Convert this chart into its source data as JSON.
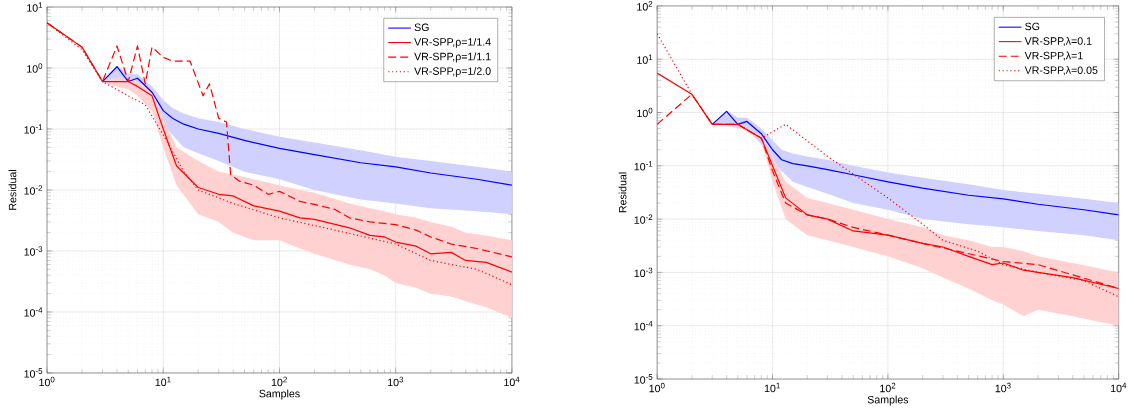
{
  "chart_data": [
    {
      "type": "line",
      "xlabel": "Samples",
      "ylabel": "Residual",
      "log": "xy",
      "grid": true,
      "legend": "top right",
      "xlim": [
        1,
        10000
      ],
      "ylim": [
        1e-05,
        10
      ],
      "xticks": [
        {
          "value": 1,
          "label": "10$^{0}$"
        },
        {
          "value": 10,
          "label": "10$^{1}$"
        },
        {
          "value": 100,
          "label": "10$^{2}$"
        },
        {
          "value": 1000,
          "label": "10$^{3}$"
        },
        {
          "value": 10000,
          "label": "10$^{4}$"
        }
      ],
      "yticks": [
        {
          "value": 1e-05,
          "label": "10$^{-5}$"
        },
        {
          "value": 0.0001,
          "label": "10$^{-4}$"
        },
        {
          "value": 0.001,
          "label": "10$^{-3}$"
        },
        {
          "value": 0.01,
          "label": "10$^{-2}$"
        },
        {
          "value": 0.1,
          "label": "10$^{-1}$"
        },
        {
          "value": 1,
          "label": "10$^{0}$"
        },
        {
          "value": 10,
          "label": "10$^{1}$"
        }
      ],
      "series": [
        {
          "name": "SG",
          "color": "#0000ff",
          "line_style": "solid",
          "x": [
            3,
            4,
            5,
            6,
            8,
            10,
            12,
            15,
            20,
            30,
            50,
            100,
            200,
            500,
            1000,
            2000,
            5000,
            10000
          ],
          "values": [
            0.6,
            1.05,
            0.6,
            0.68,
            0.4,
            0.2,
            0.15,
            0.12,
            0.1,
            0.085,
            0.065,
            0.048,
            0.038,
            0.028,
            0.024,
            0.019,
            0.015,
            0.012
          ],
          "lower": [
            0.6,
            0.6,
            0.5,
            0.5,
            0.25,
            0.12,
            0.08,
            0.05,
            0.04,
            0.03,
            0.02,
            0.015,
            0.01,
            0.007,
            0.006,
            0.005,
            0.0045,
            0.004
          ],
          "upper": [
            0.6,
            1.1,
            0.8,
            0.8,
            0.5,
            0.3,
            0.22,
            0.18,
            0.15,
            0.13,
            0.1,
            0.075,
            0.06,
            0.045,
            0.035,
            0.03,
            0.024,
            0.02
          ]
        },
        {
          "name": "VR-SPP,ρ=1/1.4",
          "color": "#ff0000",
          "line_style": "solid",
          "x": [
            1,
            2,
            3,
            4,
            5,
            6,
            8,
            10,
            13,
            20,
            30,
            40,
            60,
            100,
            150,
            200,
            400,
            600,
            800,
            1000,
            1500,
            2000,
            3000,
            4000,
            6000,
            10000
          ],
          "values": [
            5.5,
            2.2,
            0.6,
            0.6,
            0.6,
            0.5,
            0.35,
            0.1,
            0.025,
            0.011,
            0.0085,
            0.008,
            0.0055,
            0.0045,
            0.0035,
            0.0033,
            0.0024,
            0.0018,
            0.0017,
            0.0014,
            0.0012,
            0.0009,
            0.00095,
            0.0007,
            0.00065,
            0.00045
          ],
          "lower": [
            5.5,
            2.2,
            0.6,
            0.5,
            0.45,
            0.35,
            0.2,
            0.05,
            0.012,
            0.004,
            0.003,
            0.002,
            0.0015,
            0.0015,
            0.0011,
            0.0009,
            0.0006,
            0.0005,
            0.0004,
            0.0003,
            0.00025,
            0.0002,
            0.00018,
            0.00015,
            0.00012,
            8e-05
          ],
          "upper": [
            5.5,
            2.2,
            0.6,
            0.7,
            0.7,
            0.6,
            0.45,
            0.15,
            0.05,
            0.03,
            0.02,
            0.018,
            0.015,
            0.012,
            0.01,
            0.009,
            0.006,
            0.005,
            0.0045,
            0.004,
            0.0035,
            0.003,
            0.0025,
            0.002,
            0.0018,
            0.0015
          ]
        },
        {
          "name": "VR-SPP,ρ=1/1.1",
          "color": "#ff0000",
          "line_style": "dashed",
          "x": [
            1,
            2,
            3,
            4,
            5,
            6,
            7,
            8,
            10,
            12,
            17,
            22,
            25,
            30,
            35,
            38,
            45,
            60,
            80,
            100,
            150,
            200,
            300,
            400,
            600,
            1000,
            1500,
            2000,
            3000,
            5000,
            10000
          ],
          "values": [
            5.5,
            2.2,
            0.6,
            2.3,
            0.6,
            2.3,
            0.55,
            2.2,
            1.5,
            1.3,
            1.3,
            0.35,
            0.55,
            0.15,
            0.13,
            0.018,
            0.014,
            0.012,
            0.0085,
            0.0095,
            0.0065,
            0.0058,
            0.0048,
            0.0035,
            0.003,
            0.0027,
            0.0022,
            0.0017,
            0.0013,
            0.0011,
            0.0008
          ]
        },
        {
          "name": "VR-SPP,ρ=1/2.0",
          "color": "#ff0000",
          "line_style": "dotted",
          "x": [
            1,
            2,
            3,
            5,
            7,
            10,
            15,
            20,
            40,
            100,
            300,
            1000,
            2000,
            5000,
            10000
          ],
          "values": [
            5.5,
            2.0,
            0.6,
            0.35,
            0.25,
            0.08,
            0.02,
            0.01,
            0.006,
            0.0035,
            0.0022,
            0.0013,
            0.0007,
            0.0005,
            0.00028
          ]
        }
      ]
    },
    {
      "type": "line",
      "xlabel": "Samples",
      "ylabel": "Residual",
      "log": "xy",
      "grid": true,
      "legend": "top right",
      "xlim": [
        1,
        10000
      ],
      "ylim": [
        1e-05,
        100
      ],
      "xticks": [
        {
          "value": 1,
          "label": "10$^{0}$"
        },
        {
          "value": 10,
          "label": "10$^{1}$"
        },
        {
          "value": 100,
          "label": "10$^{2}$"
        },
        {
          "value": 1000,
          "label": "10$^{3}$"
        },
        {
          "value": 10000,
          "label": "10$^{4}$"
        }
      ],
      "yticks": [
        {
          "value": 1e-05,
          "label": "10$^{-5}$"
        },
        {
          "value": 0.0001,
          "label": "10$^{-4}$"
        },
        {
          "value": 0.001,
          "label": "10$^{-3}$"
        },
        {
          "value": 0.01,
          "label": "10$^{-2}$"
        },
        {
          "value": 0.1,
          "label": "10$^{-1}$"
        },
        {
          "value": 1,
          "label": "10$^{0}$"
        },
        {
          "value": 10,
          "label": "10$^{1}$"
        },
        {
          "value": 100,
          "label": "10$^{2}$"
        }
      ],
      "series": [
        {
          "name": "SG",
          "color": "#0000ff",
          "line_style": "solid",
          "x": [
            3,
            4,
            5,
            6,
            8,
            10,
            12,
            15,
            20,
            30,
            50,
            100,
            200,
            500,
            1000,
            2000,
            5000,
            10000
          ],
          "values": [
            0.6,
            1.05,
            0.6,
            0.68,
            0.4,
            0.2,
            0.13,
            0.11,
            0.1,
            0.085,
            0.068,
            0.05,
            0.038,
            0.028,
            0.024,
            0.019,
            0.015,
            0.012
          ],
          "lower": [
            0.6,
            0.6,
            0.5,
            0.5,
            0.25,
            0.12,
            0.08,
            0.05,
            0.04,
            0.03,
            0.02,
            0.015,
            0.01,
            0.008,
            0.007,
            0.006,
            0.005,
            0.004
          ],
          "upper": [
            0.6,
            1.1,
            0.8,
            0.8,
            0.5,
            0.3,
            0.2,
            0.17,
            0.15,
            0.13,
            0.1,
            0.075,
            0.06,
            0.045,
            0.035,
            0.03,
            0.024,
            0.02
          ]
        },
        {
          "name": "VR-SPP,λ=0.1",
          "color": "#ff0000",
          "line_style": "solid",
          "x": [
            1,
            2,
            3,
            5,
            8,
            10,
            13,
            20,
            30,
            50,
            100,
            200,
            300,
            500,
            800,
            1000,
            1500,
            2000,
            4000,
            10000
          ],
          "values": [
            5.5,
            2.2,
            0.6,
            0.6,
            0.33,
            0.1,
            0.025,
            0.012,
            0.01,
            0.006,
            0.005,
            0.0035,
            0.003,
            0.002,
            0.0014,
            0.0015,
            0.0011,
            0.001,
            0.0008,
            0.0005
          ],
          "lower": [
            5.5,
            2.2,
            0.6,
            0.55,
            0.3,
            0.05,
            0.01,
            0.005,
            0.004,
            0.003,
            0.002,
            0.0012,
            0.0008,
            0.0005,
            0.0003,
            0.00025,
            0.00015,
            0.0002,
            0.00015,
            0.0001
          ],
          "upper": [
            5.5,
            2.2,
            0.6,
            0.65,
            0.36,
            0.15,
            0.05,
            0.025,
            0.02,
            0.015,
            0.01,
            0.007,
            0.005,
            0.004,
            0.003,
            0.003,
            0.0025,
            0.002,
            0.0015,
            0.001
          ]
        },
        {
          "name": "VR-SPP,λ=1",
          "color": "#ff0000",
          "line_style": "dashed",
          "x": [
            1,
            2,
            3,
            5,
            8,
            10,
            13,
            20,
            30,
            50,
            100,
            200,
            400,
            1000,
            2000,
            4000,
            10000
          ],
          "values": [
            0.6,
            2.2,
            0.6,
            0.6,
            0.33,
            0.08,
            0.02,
            0.012,
            0.01,
            0.007,
            0.005,
            0.0035,
            0.0025,
            0.0016,
            0.0014,
            0.0009,
            0.0005
          ]
        },
        {
          "name": "VR-SPP,λ=0.05",
          "color": "#ff0000",
          "line_style": "dotted",
          "x": [
            1,
            2,
            3,
            5,
            8,
            13,
            30,
            50,
            100,
            200,
            300,
            600,
            1000,
            2000,
            5000,
            10000
          ],
          "values": [
            30,
            2.2,
            0.6,
            0.6,
            0.33,
            0.6,
            0.15,
            0.07,
            0.025,
            0.008,
            0.004,
            0.0025,
            0.0014,
            0.001,
            0.0007,
            0.00035
          ]
        }
      ]
    }
  ]
}
